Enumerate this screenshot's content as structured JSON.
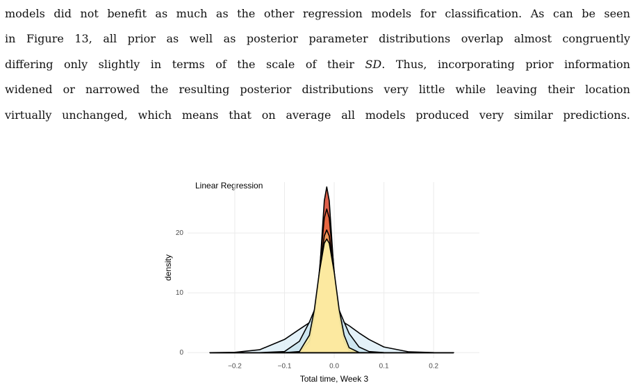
{
  "paragraph": {
    "lines": [
      "models did not benefit as much as the other regression models for classification. As can be seen",
      "in Figure 13, all prior as well as posterior parameter distributions overlap almost congruently",
      [
        "differing only slightly in terms of the scale of their ",
        "SD",
        ". Thus, incorporating prior information"
      ],
      "widened or narrowed the resulting posterior distributions very little while leaving their location",
      "virtually unchanged, which means that on average all models produced very similar predictions."
    ]
  },
  "chart_data": {
    "type": "area",
    "title": "Linear Regression",
    "x_label": "Total time, Week 3",
    "y_label": "density",
    "x": [
      -0.25,
      -0.2,
      -0.15,
      -0.1,
      -0.07,
      -0.05,
      -0.04,
      -0.03,
      -0.02,
      -0.015,
      -0.01,
      0,
      0.01,
      0.02,
      0.03,
      0.05,
      0.07,
      0.1,
      0.15,
      0.2,
      0.24
    ],
    "series": [
      {
        "color": "#deeff7",
        "values": [
          0,
          0.05,
          0.48,
          2.2,
          3.9,
          5.0,
          5.5,
          5.8,
          6.0,
          6,
          6.0,
          5.8,
          5.5,
          5.0,
          4.5,
          3.3,
          2.2,
          0.95,
          0.14,
          0.01,
          0
        ]
      },
      {
        "color": "#c9e4ee",
        "values": [
          0,
          0,
          0,
          0.18,
          1.9,
          5.1,
          7.1,
          8.8,
          9.9,
          10,
          9.9,
          8.8,
          7.1,
          5.1,
          3.2,
          0.95,
          0.18,
          0.01,
          0,
          0,
          0
        ]
      },
      {
        "color": "#d7442b",
        "values": [
          0,
          0,
          0,
          0,
          0,
          0.4,
          3.2,
          12.7,
          25.4,
          27.7,
          25.4,
          12.7,
          3.2,
          0.4,
          0.02,
          0,
          0,
          0,
          0,
          0,
          0
        ]
      },
      {
        "color": "#e8673f",
        "values": [
          0,
          0,
          0,
          0,
          0.01,
          1.05,
          4.9,
          13.5,
          22.5,
          24,
          22.5,
          13.5,
          4.9,
          1.05,
          0.14,
          0,
          0,
          0,
          0,
          0,
          0
        ]
      },
      {
        "color": "#f5a05e",
        "values": [
          0,
          0,
          0,
          0,
          0.06,
          1.9,
          6.0,
          13.2,
          19.5,
          20.5,
          19.5,
          13.2,
          6.0,
          1.9,
          0.39,
          0,
          0,
          0,
          0,
          0,
          0
        ]
      },
      {
        "color": "#fdf0a6",
        "values": [
          0,
          0,
          0,
          0,
          0.18,
          2.9,
          7.2,
          13.4,
          18.3,
          19,
          18.3,
          13.4,
          7.2,
          2.9,
          0.83,
          0.03,
          0,
          0,
          0,
          0,
          0
        ]
      }
    ],
    "xlim": [
      -0.295,
      0.292
    ],
    "ylim": [
      -0.9,
      28.5
    ],
    "xticks": [
      {
        "value": -0.2,
        "label": "−0.2"
      },
      {
        "value": -0.1,
        "label": "−0.1"
      },
      {
        "value": 0,
        "label": "0.0"
      },
      0.1,
      0.2
    ],
    "yticks": [
      0,
      10,
      20
    ],
    "grid": true
  }
}
